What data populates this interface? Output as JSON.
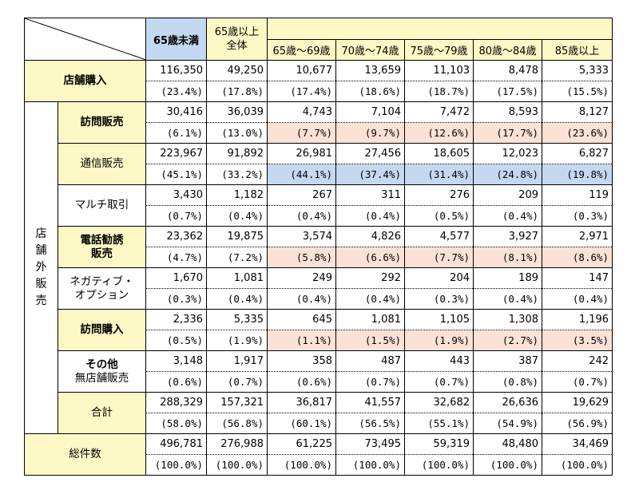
{
  "header": {
    "under65": "65歳未満",
    "over65_line1": "65歳以上",
    "over65_line2": "全体",
    "ages": [
      "65歳～69歳",
      "70歳～74歳",
      "75歳～79歳",
      "80歳～84歳",
      "85歳以上"
    ]
  },
  "side_label": "店舗外販売",
  "rows": [
    {
      "key": "store",
      "label1": "店舗購入",
      "label2": "",
      "counts": [
        "116,350",
        "49,250",
        "10,677",
        "13,659",
        "11,103",
        "8,478",
        "5,333"
      ],
      "pcts": [
        "(23.4%)",
        "(17.8%)",
        "(17.4%)",
        "(18.6%)",
        "(18.7%)",
        "(17.5%)",
        "(15.5%)"
      ]
    },
    {
      "key": "visit_sales",
      "label1": "訪問販売",
      "label2": "",
      "counts": [
        "30,416",
        "36,039",
        "4,743",
        "7,104",
        "7,472",
        "8,593",
        "8,127"
      ],
      "pcts": [
        "(6.1%)",
        "(13.0%)",
        "(7.7%)",
        "(9.7%)",
        "(12.6%)",
        "(17.7%)",
        "(23.6%)"
      ]
    },
    {
      "key": "mail_order",
      "label1": "通信販売",
      "label2": "",
      "counts": [
        "223,967",
        "91,892",
        "26,981",
        "27,456",
        "18,605",
        "12,023",
        "6,827"
      ],
      "pcts": [
        "(45.1%)",
        "(33.2%)",
        "(44.1%)",
        "(37.4%)",
        "(31.4%)",
        "(24.8%)",
        "(19.8%)"
      ]
    },
    {
      "key": "multi",
      "label1": "マルチ取引",
      "label2": "",
      "counts": [
        "3,430",
        "1,182",
        "267",
        "311",
        "276",
        "209",
        "119"
      ],
      "pcts": [
        "(0.7%)",
        "(0.4%)",
        "(0.4%)",
        "(0.4%)",
        "(0.5%)",
        "(0.4%)",
        "(0.3%)"
      ]
    },
    {
      "key": "phone",
      "label1": "電話勧誘",
      "label2": "販売",
      "counts": [
        "23,362",
        "19,875",
        "3,574",
        "4,826",
        "4,577",
        "3,927",
        "2,971"
      ],
      "pcts": [
        "(4.7%)",
        "(7.2%)",
        "(5.8%)",
        "(6.6%)",
        "(7.7%)",
        "(8.1%)",
        "(8.6%)"
      ]
    },
    {
      "key": "negative",
      "label1": "ネガティブ・",
      "label2": "オプション",
      "counts": [
        "1,670",
        "1,081",
        "249",
        "292",
        "204",
        "189",
        "147"
      ],
      "pcts": [
        "(0.3%)",
        "(0.4%)",
        "(0.4%)",
        "(0.4%)",
        "(0.3%)",
        "(0.4%)",
        "(0.4%)"
      ]
    },
    {
      "key": "visit_purchase",
      "label1": "訪問購入",
      "label2": "",
      "counts": [
        "2,336",
        "5,335",
        "645",
        "1,081",
        "1,105",
        "1,308",
        "1,196"
      ],
      "pcts": [
        "(0.5%)",
        "(1.9%)",
        "(1.1%)",
        "(1.5%)",
        "(1.9%)",
        "(2.7%)",
        "(3.5%)"
      ]
    },
    {
      "key": "other",
      "label1": "その他",
      "label2": "無店舗販売",
      "counts": [
        "3,148",
        "1,917",
        "358",
        "487",
        "443",
        "387",
        "242"
      ],
      "pcts": [
        "(0.6%)",
        "(0.7%)",
        "(0.6%)",
        "(0.7%)",
        "(0.7%)",
        "(0.8%)",
        "(0.7%)"
      ]
    },
    {
      "key": "subtotal",
      "label1": "合計",
      "label2": "",
      "counts": [
        "288,329",
        "157,321",
        "36,817",
        "41,557",
        "32,682",
        "26,636",
        "19,629"
      ],
      "pcts": [
        "(58.0%)",
        "(56.8%)",
        "(60.1%)",
        "(56.5%)",
        "(55.1%)",
        "(54.9%)",
        "(56.9%)"
      ]
    },
    {
      "key": "total",
      "label1": "総件数",
      "label2": "",
      "counts": [
        "496,781",
        "276,988",
        "61,225",
        "73,495",
        "59,319",
        "48,480",
        "34,469"
      ],
      "pcts": [
        "(100.0%)",
        "(100.0%)",
        "(100.0%)",
        "(100.0%)",
        "(100.0%)",
        "(100.0%)",
        "(100.0%)"
      ]
    }
  ],
  "colors": {
    "header_yellow": "#fdf9c6",
    "header_blue": "#c4d9f1",
    "highlight_pink": "#fce1d6",
    "highlight_blue": "#c4d9f1"
  }
}
